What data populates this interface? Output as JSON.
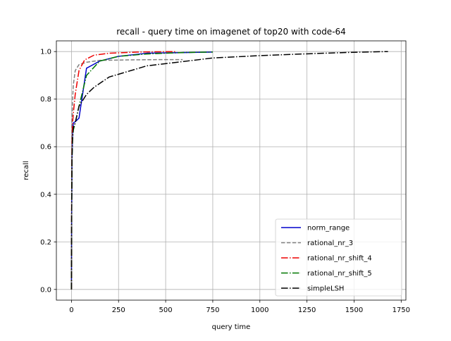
{
  "chart_data": {
    "type": "line",
    "title": "recall - query time on imagenet of top20 with code-64",
    "xlabel": "query time",
    "ylabel": "recall",
    "xlim": [
      -80,
      1775
    ],
    "ylim": [
      -0.045,
      1.045
    ],
    "xticks": [
      0,
      250,
      500,
      750,
      1000,
      1250,
      1500,
      1750
    ],
    "xtick_labels": [
      "0",
      "250",
      "500",
      "750",
      "1000",
      "1250",
      "1500",
      "1750"
    ],
    "yticks": [
      0.0,
      0.2,
      0.4,
      0.6,
      0.8,
      1.0
    ],
    "ytick_labels": [
      "0.0",
      "0.2",
      "0.4",
      "0.6",
      "0.8",
      "1.0"
    ],
    "grid": true,
    "legend_position": "lower-right",
    "series": [
      {
        "name": "norm_range",
        "color": "#0000cc",
        "dash": "solid",
        "x": [
          0,
          1,
          3,
          6,
          10,
          20,
          40,
          80,
          150,
          250,
          400,
          750
        ],
        "y": [
          0.0,
          0.3,
          0.55,
          0.66,
          0.7,
          0.705,
          0.72,
          0.93,
          0.96,
          0.98,
          0.993,
          0.998
        ]
      },
      {
        "name": "rational_nr_3",
        "color": "#808080",
        "dash": "dashed",
        "x": [
          0,
          1,
          3,
          6,
          10,
          20,
          40,
          80,
          150,
          300,
          450,
          590
        ],
        "y": [
          0.0,
          0.4,
          0.7,
          0.8,
          0.86,
          0.92,
          0.945,
          0.955,
          0.963,
          0.965,
          0.966,
          0.966
        ]
      },
      {
        "name": "rational_nr_shift_4",
        "color": "#ee0000",
        "dash": "dashdot",
        "x": [
          0,
          1,
          3,
          6,
          10,
          20,
          40,
          70,
          120,
          200,
          350,
          550
        ],
        "y": [
          0.0,
          0.35,
          0.6,
          0.7,
          0.74,
          0.82,
          0.92,
          0.965,
          0.985,
          0.993,
          0.998,
          1.0
        ]
      },
      {
        "name": "rational_nr_shift_5",
        "color": "#007700",
        "dash": "dashdot",
        "x": [
          0,
          1,
          3,
          6,
          10,
          20,
          40,
          80,
          150,
          250,
          400,
          600,
          750
        ],
        "y": [
          0.0,
          0.3,
          0.55,
          0.63,
          0.67,
          0.7,
          0.77,
          0.9,
          0.96,
          0.98,
          0.99,
          0.996,
          0.998
        ]
      },
      {
        "name": "simpleLSH",
        "color": "#000000",
        "dash": "dashdot",
        "x": [
          0,
          1,
          3,
          6,
          10,
          20,
          40,
          80,
          120,
          200,
          400,
          750,
          1000,
          1300,
          1500,
          1680
        ],
        "y": [
          0.0,
          0.3,
          0.55,
          0.64,
          0.68,
          0.7,
          0.77,
          0.82,
          0.85,
          0.893,
          0.94,
          0.973,
          0.983,
          0.992,
          0.997,
          1.0
        ]
      }
    ]
  }
}
